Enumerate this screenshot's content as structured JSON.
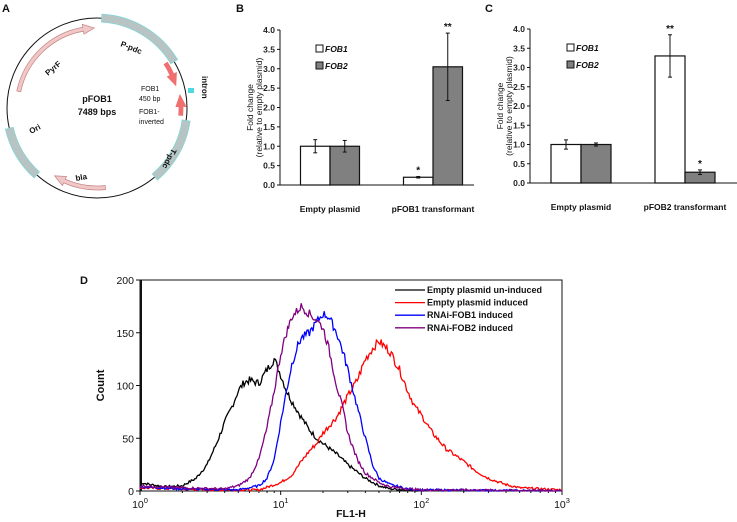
{
  "panels": {
    "a": "A",
    "b": "B",
    "c": "C",
    "d": "D"
  },
  "plasmid_map": {
    "name": "pFOB1",
    "size": "7489 bps",
    "features": {
      "p_pdc": "P-pdc",
      "pyrf": "PyrF",
      "ori": "Ori",
      "bla": "bla",
      "t_pdc": "T-pdc",
      "intron": "intron",
      "fob1_line1": "FOB1",
      "fob1_line2": "450 bp",
      "fob1_inv_line1": "FOB1-",
      "fob1_inv_line2": "inverted"
    },
    "colors": {
      "block": "#b8c4c4",
      "block_edge": "#7fd6d6",
      "arrow": "#f0c8c8",
      "arrow_edge": "#c98a8a",
      "fob_arrow": "#f07070",
      "intron": "#4fd8e0"
    }
  },
  "chart_data": [
    {
      "type": "bar",
      "id": "B",
      "ylabel_line1": "Fold change",
      "ylabel_line2": "(relative to empty plasmid)",
      "categories": [
        "Empty plasmid",
        "pFOB1 transformant"
      ],
      "yticks": [
        "0.0",
        "0.5",
        "1.0",
        "1.5",
        "2.0",
        "2.5",
        "3.0",
        "3.5",
        "4.0"
      ],
      "ylim": [
        0,
        4
      ],
      "legend_placement": "top-left",
      "series": [
        {
          "name": "FOB1",
          "color": "#ffffff",
          "values": [
            1.0,
            0.2
          ],
          "errors": [
            0.17,
            0.02
          ],
          "sig": [
            "",
            "*"
          ]
        },
        {
          "name": "FOB2",
          "color": "#808080",
          "values": [
            1.0,
            3.05
          ],
          "errors": [
            0.15,
            0.87
          ],
          "sig": [
            "",
            "**"
          ]
        }
      ]
    },
    {
      "type": "bar",
      "id": "C",
      "ylabel_line1": "Fold change",
      "ylabel_line2": "(relative to empty plasmid)",
      "categories": [
        "Empty plasmid",
        "pFOB2 transformant"
      ],
      "yticks": [
        "0.0",
        "0.5",
        "1.0",
        "1.5",
        "2.0",
        "2.5",
        "3.0",
        "3.5",
        "4.0"
      ],
      "ylim": [
        0,
        4
      ],
      "legend_placement": "top-left",
      "series": [
        {
          "name": "FOB1",
          "color": "#ffffff",
          "values": [
            1.0,
            3.3
          ],
          "errors": [
            0.12,
            0.55
          ],
          "sig": [
            "",
            "**"
          ]
        },
        {
          "name": "FOB2",
          "color": "#808080",
          "values": [
            1.0,
            0.28
          ],
          "errors": [
            0.04,
            0.06
          ],
          "sig": [
            "",
            "*"
          ]
        }
      ]
    },
    {
      "type": "line",
      "id": "D",
      "xlabel": "FL1-H",
      "ylabel": "Count",
      "xscale": "log",
      "xlim": [
        1,
        1000
      ],
      "ylim": [
        0,
        200
      ],
      "xticks_base": "10",
      "xticks_exp": [
        "0",
        "1",
        "2",
        "3"
      ],
      "yticks": [
        "0",
        "50",
        "100",
        "150",
        "200"
      ],
      "legend_placement": "top-right",
      "series": [
        {
          "name": "Empty plasmid un-induced",
          "color": "#000000",
          "x": [
            1,
            1.2,
            1.5,
            2,
            2.5,
            3,
            3.5,
            4,
            4.5,
            5,
            5.5,
            6,
            7,
            8,
            9,
            10,
            11,
            12,
            14,
            16,
            18,
            20,
            25,
            30,
            40,
            50,
            60,
            80,
            100
          ],
          "y": [
            8,
            6,
            4,
            5,
            12,
            25,
            45,
            65,
            80,
            95,
            103,
            105,
            102,
            115,
            125,
            110,
            95,
            85,
            70,
            58,
            50,
            45,
            35,
            25,
            12,
            5,
            2,
            1,
            0
          ]
        },
        {
          "name": "Empty plasmid induced",
          "color": "#ff0000",
          "x": [
            1,
            3,
            7,
            10,
            12,
            14,
            16,
            18,
            20,
            25,
            30,
            35,
            40,
            45,
            50,
            60,
            70,
            80,
            90,
            100,
            120,
            150,
            200,
            250,
            300,
            400,
            500,
            700,
            1000
          ],
          "y": [
            3,
            1,
            1,
            8,
            15,
            28,
            38,
            45,
            55,
            70,
            90,
            105,
            125,
            135,
            142,
            132,
            115,
            95,
            80,
            72,
            55,
            40,
            28,
            18,
            12,
            6,
            3,
            2,
            1
          ]
        },
        {
          "name": "RNAi-FOB1 induced",
          "color": "#0000ff",
          "x": [
            1,
            2,
            5,
            7,
            8,
            9,
            10,
            11,
            12,
            13,
            14,
            16,
            18,
            20,
            22,
            25,
            28,
            30,
            35,
            40,
            45,
            50,
            60,
            80,
            100,
            1000
          ],
          "y": [
            4,
            2,
            1,
            5,
            12,
            30,
            65,
            95,
            120,
            135,
            145,
            150,
            160,
            168,
            165,
            150,
            130,
            115,
            80,
            50,
            25,
            12,
            6,
            2,
            1,
            0
          ]
        },
        {
          "name": "RNAi-FOB2 induced",
          "color": "#800080",
          "x": [
            1,
            2,
            4,
            5,
            6,
            7,
            8,
            9,
            10,
            11,
            12,
            14,
            16,
            18,
            20,
            22,
            25,
            28,
            30,
            35,
            40,
            50,
            60,
            80,
            100,
            200,
            1000
          ],
          "y": [
            5,
            3,
            2,
            5,
            12,
            30,
            60,
            95,
            130,
            150,
            165,
            175,
            168,
            162,
            155,
            135,
            100,
            75,
            55,
            30,
            17,
            8,
            4,
            2,
            1,
            1,
            0
          ]
        }
      ]
    }
  ]
}
